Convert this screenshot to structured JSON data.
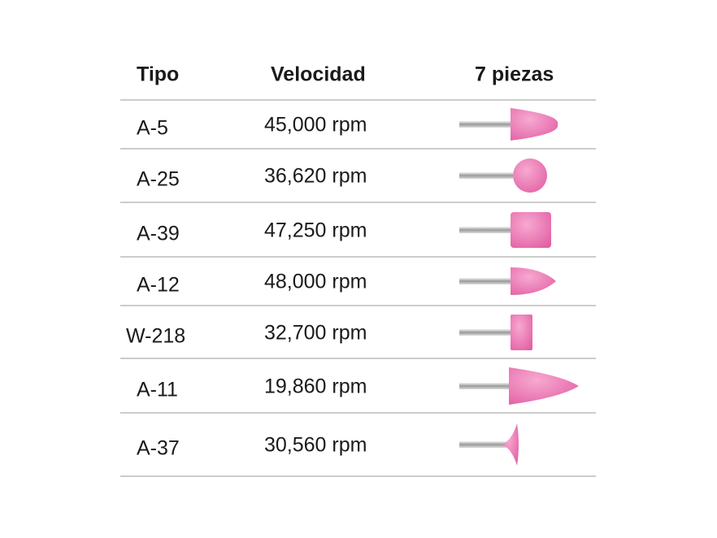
{
  "table": {
    "headers": [
      "Tipo",
      "Velocidad",
      "7 piezas"
    ],
    "rows": [
      [
        "A-5",
        "45,000 rpm"
      ],
      [
        "A-25",
        "36,620 rpm"
      ],
      [
        "A-39",
        "47,250 rpm"
      ],
      [
        "A-12",
        "48,000 rpm"
      ],
      [
        "W-218",
        "32,700 rpm"
      ],
      [
        "A-11",
        "19,860 rpm"
      ],
      [
        "A-37",
        "30,560 rpm"
      ]
    ]
  }
}
